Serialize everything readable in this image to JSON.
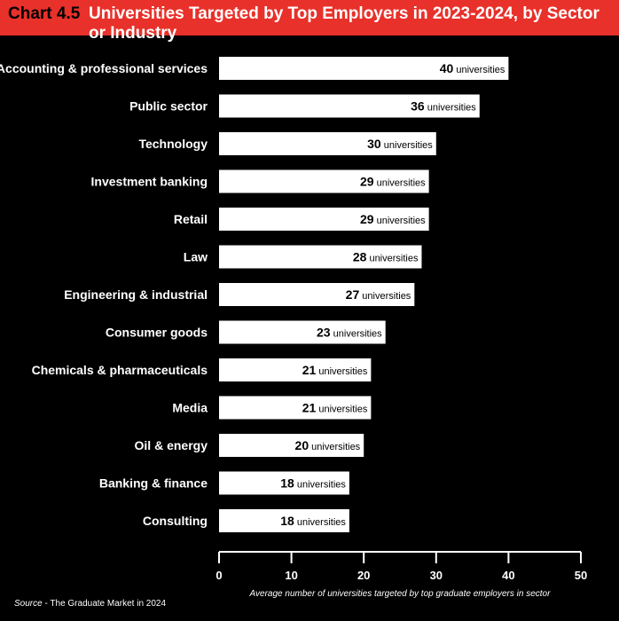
{
  "header": {
    "chart_number": "Chart 4.5",
    "title": "Universities Targeted by Top Employers in 2023-2024, by Sector or Industry"
  },
  "source": {
    "label": "Source",
    "text": " - The Graduate Market in 2024"
  },
  "colors": {
    "header_bg": "#e8312a",
    "background": "#000000",
    "bar": "#ffffff",
    "text": "#ffffff"
  },
  "chart_data": {
    "type": "bar",
    "orientation": "horizontal",
    "categories": [
      "Accounting & professional services",
      "Public sector",
      "Technology",
      "Investment banking",
      "Retail",
      "Law",
      "Engineering & industrial",
      "Consumer goods",
      "Chemicals & pharmaceuticals",
      "Media",
      "Oil & energy",
      "Banking & finance",
      "Consulting"
    ],
    "values": [
      40,
      36,
      30,
      29,
      29,
      28,
      27,
      23,
      21,
      21,
      20,
      18,
      18
    ],
    "value_unit": "universities",
    "xlabel": "Average number of universities targeted by top graduate employers in sector",
    "xlim": [
      0,
      50
    ],
    "xticks": [
      0,
      10,
      20,
      30,
      40,
      50
    ],
    "grid": false,
    "legend": "none"
  }
}
